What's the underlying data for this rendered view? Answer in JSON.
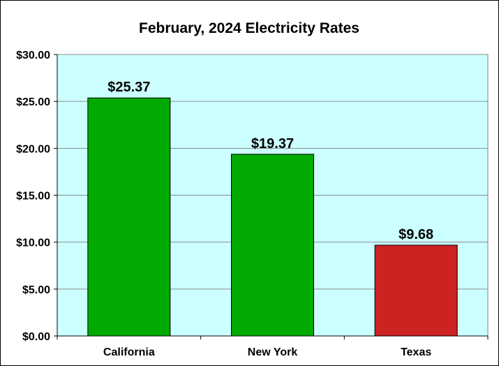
{
  "chart_data": {
    "type": "bar",
    "title": "February, 2024 Electricity Rates",
    "xlabel": "",
    "ylabel": "",
    "categories": [
      "California",
      "New York",
      "Texas"
    ],
    "values": [
      25.37,
      19.37,
      9.68
    ],
    "data_labels": [
      "$25.37",
      "$19.37",
      "$9.68"
    ],
    "bar_colors": [
      "#00AA00",
      "#00AA00",
      "#CC2222"
    ],
    "ylim": [
      0,
      30
    ],
    "yticks": [
      0,
      5,
      10,
      15,
      20,
      25,
      30
    ],
    "ytick_labels": [
      "$0.00",
      "$5.00",
      "$10.00",
      "$15.00",
      "$20.00",
      "$25.00",
      "$30.00"
    ],
    "grid": true,
    "legend": "none",
    "plot_background": "#CCFFFF"
  }
}
